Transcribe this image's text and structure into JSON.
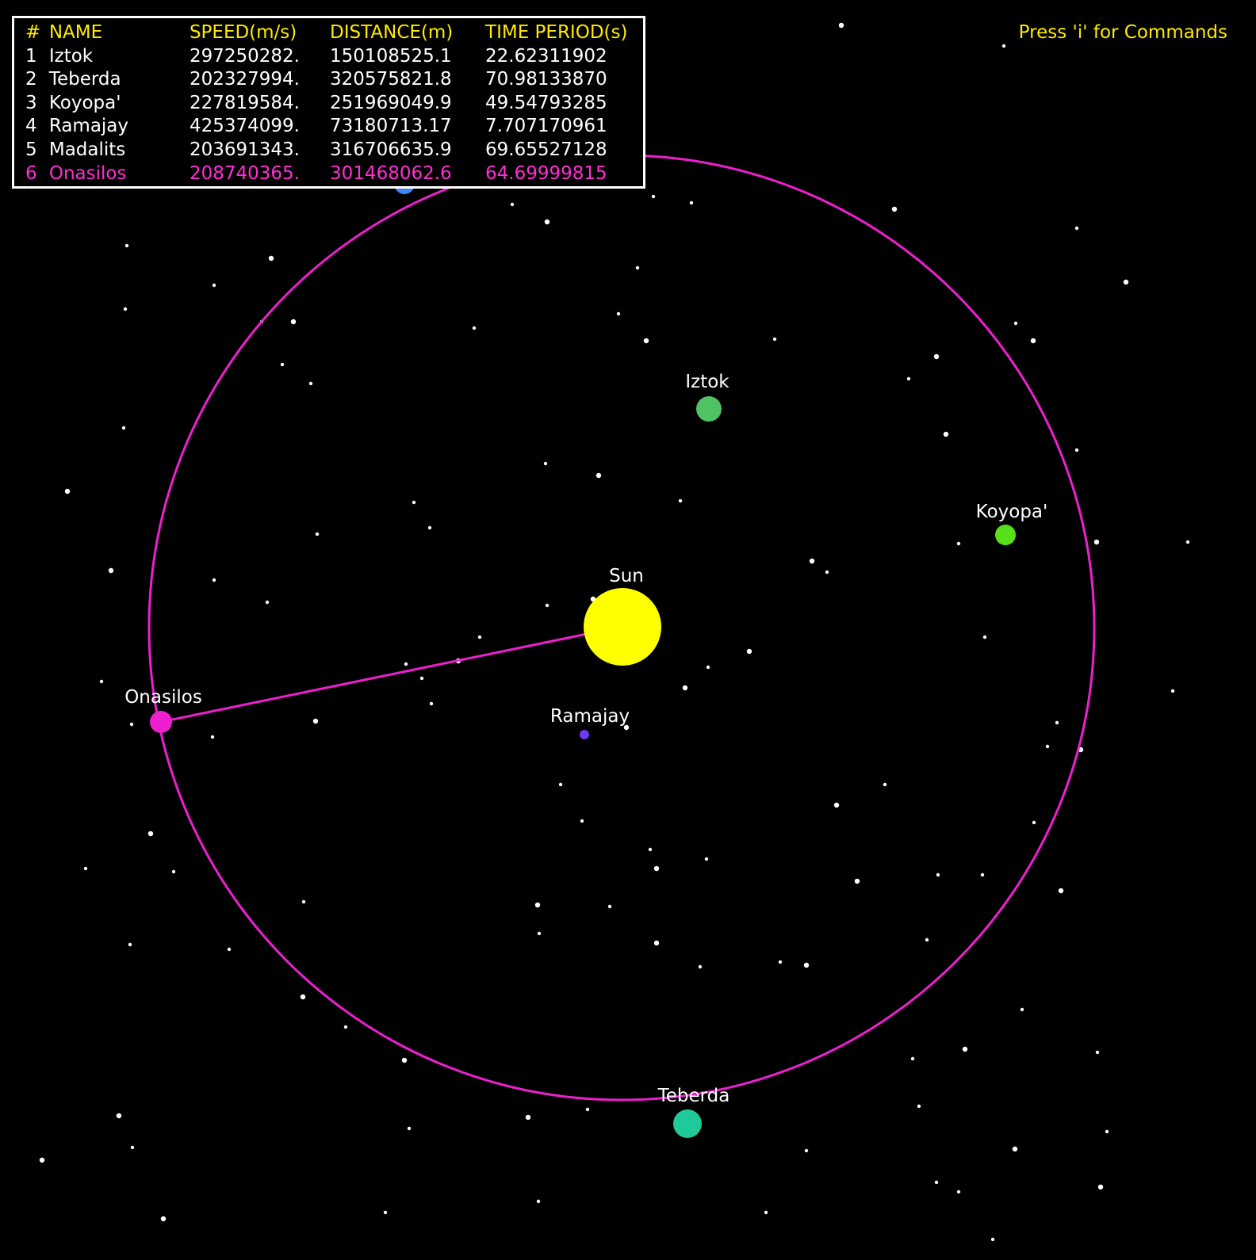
{
  "hint": "Press 'i' for Commands",
  "table": {
    "headers": [
      "#",
      "NAME",
      "SPEED(m/s)",
      "DISTANCE(m)",
      "TIME PERIOD(s)"
    ],
    "rows": [
      {
        "num": "1",
        "name": "Iztok",
        "speed": "297250282.",
        "distance": "150108525.1",
        "period": "22.62311902"
      },
      {
        "num": "2",
        "name": "Teberda",
        "speed": "202327994.",
        "distance": "320575821.8",
        "period": "70.98133870"
      },
      {
        "num": "3",
        "name": "Koyopa'",
        "speed": "227819584.",
        "distance": "251969049.9",
        "period": "49.54793285"
      },
      {
        "num": "4",
        "name": "Ramajay",
        "speed": "425374099.",
        "distance": "73180713.17",
        "period": "7.707170961"
      },
      {
        "num": "5",
        "name": "Madalits",
        "speed": "203691343.",
        "distance": "316706635.9",
        "period": "69.65527128"
      },
      {
        "num": "6",
        "name": "Onasilos",
        "speed": "208740365.",
        "distance": "301468062.6",
        "period": "64.69999815"
      }
    ],
    "selected_index": 5
  },
  "bodies": {
    "sun": {
      "label": "Sun",
      "color": "#ffff00"
    },
    "iztok": {
      "label": "Iztok",
      "color": "#4fc264"
    },
    "koyopa": {
      "label": "Koyopa'",
      "color": "#57e01a"
    },
    "ramajay": {
      "label": "Ramajay",
      "color": "#6a3bf0"
    },
    "onasilos": {
      "label": "Onasilos",
      "color": "#ee1fcf"
    },
    "teberda": {
      "label": "Teberda",
      "color": "#1fc99a"
    },
    "madalits": {
      "color": "#3e86f5"
    }
  },
  "orbit_color": "#ee1fcf",
  "star_color": "#ffffff"
}
